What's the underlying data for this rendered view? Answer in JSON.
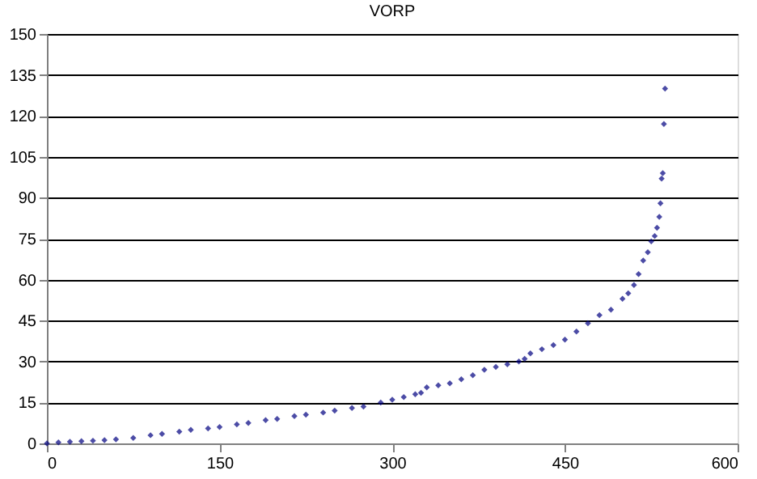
{
  "chart_data": {
    "type": "scatter",
    "title": "VORP",
    "x": [
      0,
      10,
      20,
      30,
      40,
      50,
      60,
      75,
      90,
      100,
      115,
      125,
      140,
      150,
      165,
      175,
      190,
      200,
      215,
      225,
      240,
      250,
      265,
      275,
      290,
      300,
      310,
      320,
      325,
      330,
      340,
      350,
      360,
      370,
      380,
      390,
      400,
      410,
      415,
      420,
      430,
      440,
      450,
      460,
      470,
      480,
      490,
      500,
      505,
      510,
      514,
      518,
      522,
      525,
      528,
      530,
      532,
      533,
      534,
      535,
      536,
      537
    ],
    "series": [
      {
        "color": "#000080",
        "values": [
          0,
          0.4,
          0.6,
          0.8,
          1,
          1.2,
          1.5,
          2,
          3,
          3.5,
          4.3,
          5,
          5.5,
          6,
          7,
          7.5,
          8.5,
          9,
          10,
          10.5,
          11.3,
          12,
          13,
          13.5,
          15,
          16,
          17,
          18,
          18.5,
          20.5,
          21.3,
          22,
          23.5,
          25,
          27,
          28,
          29,
          30,
          31,
          33,
          34.5,
          36,
          38,
          41,
          44,
          47,
          49,
          53,
          55,
          58,
          62,
          67,
          70,
          74,
          76,
          79,
          83,
          88,
          97,
          99,
          117,
          130
        ]
      }
    ],
    "xlim": [
      0,
      600
    ],
    "xticks": [
      0,
      150,
      300,
      450,
      600
    ],
    "ylim": [
      0,
      150
    ],
    "yticks": [
      0,
      15,
      30,
      45,
      60,
      75,
      90,
      105,
      120,
      135,
      150
    ],
    "grid": "y",
    "marker": "diamond",
    "legend": false
  }
}
